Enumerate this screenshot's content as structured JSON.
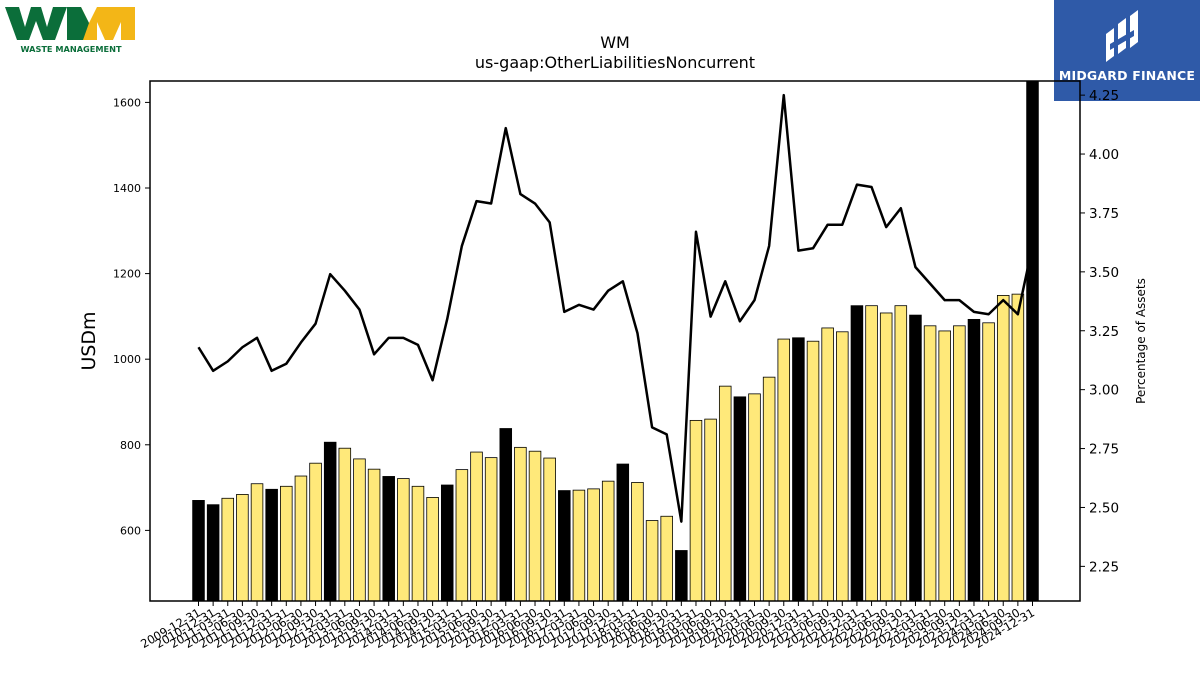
{
  "header": {
    "logo_left_text": "WASTE MANAGEMENT",
    "logo_right_text": "MIDGARD FINANCE"
  },
  "chart_data": {
    "type": "bar",
    "title": "WM",
    "subtitle": "us-gaap:OtherLiabilitiesNoncurrent",
    "ylabel": "USDm",
    "y2label": "Percentage of Assets",
    "ylim": [
      435,
      1650
    ],
    "y2lim": [
      2.103,
      4.31
    ],
    "yticks": [
      600,
      800,
      1000,
      1200,
      1400,
      1600
    ],
    "y2ticks": [
      "2.25",
      "2.50",
      "2.75",
      "3.00",
      "3.25",
      "3.50",
      "3.75",
      "4.00",
      "4.25"
    ],
    "x_tick_labels": [
      "2009-12-31",
      "2010-12-31",
      "2011-03-31",
      "2011-06-30",
      "2011-09-30",
      "2011-12-31",
      "2012-03-31",
      "2012-06-30",
      "2012-09-30",
      "2012-12-31",
      "2013-03-31",
      "2013-06-30",
      "2013-09-30",
      "2013-12-31",
      "2014-03-31",
      "2014-06-30",
      "2014-09-30",
      "2014-12-31",
      "2015-03-31",
      "2015-06-30",
      "2015-09-30",
      "2015-12-31",
      "2016-03-31",
      "2016-06-30",
      "2016-09-30",
      "2016-12-31",
      "2017-03-31",
      "2017-06-30",
      "2017-09-30",
      "2017-12-31",
      "2018-03-31",
      "2018-06-30",
      "2018-09-30",
      "2018-12-31",
      "2019-03-31",
      "2019-06-30",
      "2019-09-30",
      "2019-12-31",
      "2020-03-31",
      "2020-06-30",
      "2020-09-30",
      "2020-12-31",
      "2021-03-31",
      "2021-06-30",
      "2021-09-30",
      "2021-12-31",
      "2022-03-31",
      "2022-06-30",
      "2022-09-30",
      "2022-12-31",
      "2023-03-31",
      "2023-06-30",
      "2023-09-30",
      "2023-12-31",
      "2024-03-31",
      "2024-06-30",
      "2024-09-30",
      "2024-12-31"
    ],
    "bar_values": [
      670,
      660,
      675,
      684,
      709,
      696,
      703,
      727,
      757,
      806,
      792,
      767,
      743,
      726,
      721,
      703,
      677,
      706,
      742,
      783,
      770,
      838,
      794,
      785,
      769,
      693,
      694,
      697,
      715,
      755,
      712,
      623,
      633,
      553,
      857,
      860,
      937,
      912,
      919,
      958,
      1047,
      1050,
      1042,
      1073,
      1064,
      1125,
      1125,
      1108,
      1125,
      1103,
      1078,
      1066,
      1078,
      1093,
      1085,
      1149,
      1152,
      1650
    ],
    "bar_colors": [
      "#000000",
      "#000000",
      "#ffe97a",
      "#ffe97a",
      "#ffe97a",
      "#000000",
      "#ffe97a",
      "#ffe97a",
      "#ffe97a",
      "#000000",
      "#ffe97a",
      "#ffe97a",
      "#ffe97a",
      "#000000",
      "#ffe97a",
      "#ffe97a",
      "#ffe97a",
      "#000000",
      "#ffe97a",
      "#ffe97a",
      "#ffe97a",
      "#000000",
      "#ffe97a",
      "#ffe97a",
      "#ffe97a",
      "#000000",
      "#ffe97a",
      "#ffe97a",
      "#ffe97a",
      "#000000",
      "#ffe97a",
      "#ffe97a",
      "#ffe97a",
      "#000000",
      "#ffe97a",
      "#ffe97a",
      "#ffe97a",
      "#000000",
      "#ffe97a",
      "#ffe97a",
      "#ffe97a",
      "#000000",
      "#ffe97a",
      "#ffe97a",
      "#ffe97a",
      "#000000",
      "#ffe97a",
      "#ffe97a",
      "#ffe97a",
      "#000000",
      "#ffe97a",
      "#ffe97a",
      "#ffe97a",
      "#000000",
      "#ffe97a",
      "#ffe97a",
      "#ffe97a",
      "#000000"
    ],
    "line_values": [
      3.18,
      3.08,
      3.12,
      3.18,
      3.22,
      3.08,
      3.11,
      3.2,
      3.28,
      3.49,
      3.42,
      3.34,
      3.15,
      3.22,
      3.22,
      3.19,
      3.04,
      3.3,
      3.61,
      3.8,
      3.79,
      4.11,
      3.83,
      3.79,
      3.71,
      3.33,
      3.36,
      3.34,
      3.42,
      3.46,
      3.24,
      2.84,
      2.81,
      2.44,
      3.67,
      3.31,
      3.46,
      3.29,
      3.38,
      3.61,
      4.25,
      3.59,
      3.6,
      3.7,
      3.7,
      3.87,
      3.86,
      3.69,
      3.77,
      3.52,
      3.45,
      3.38,
      3.38,
      3.33,
      3.32,
      3.38,
      3.32,
      3.61
    ],
    "colors": {
      "highlight_bar": "#000000",
      "normal_bar": "#ffe97a",
      "line": "#000000",
      "logo_green": "#0b6e3a",
      "logo_yellow": "#f3b617",
      "midgard_blue": "#2f5aa8"
    }
  }
}
